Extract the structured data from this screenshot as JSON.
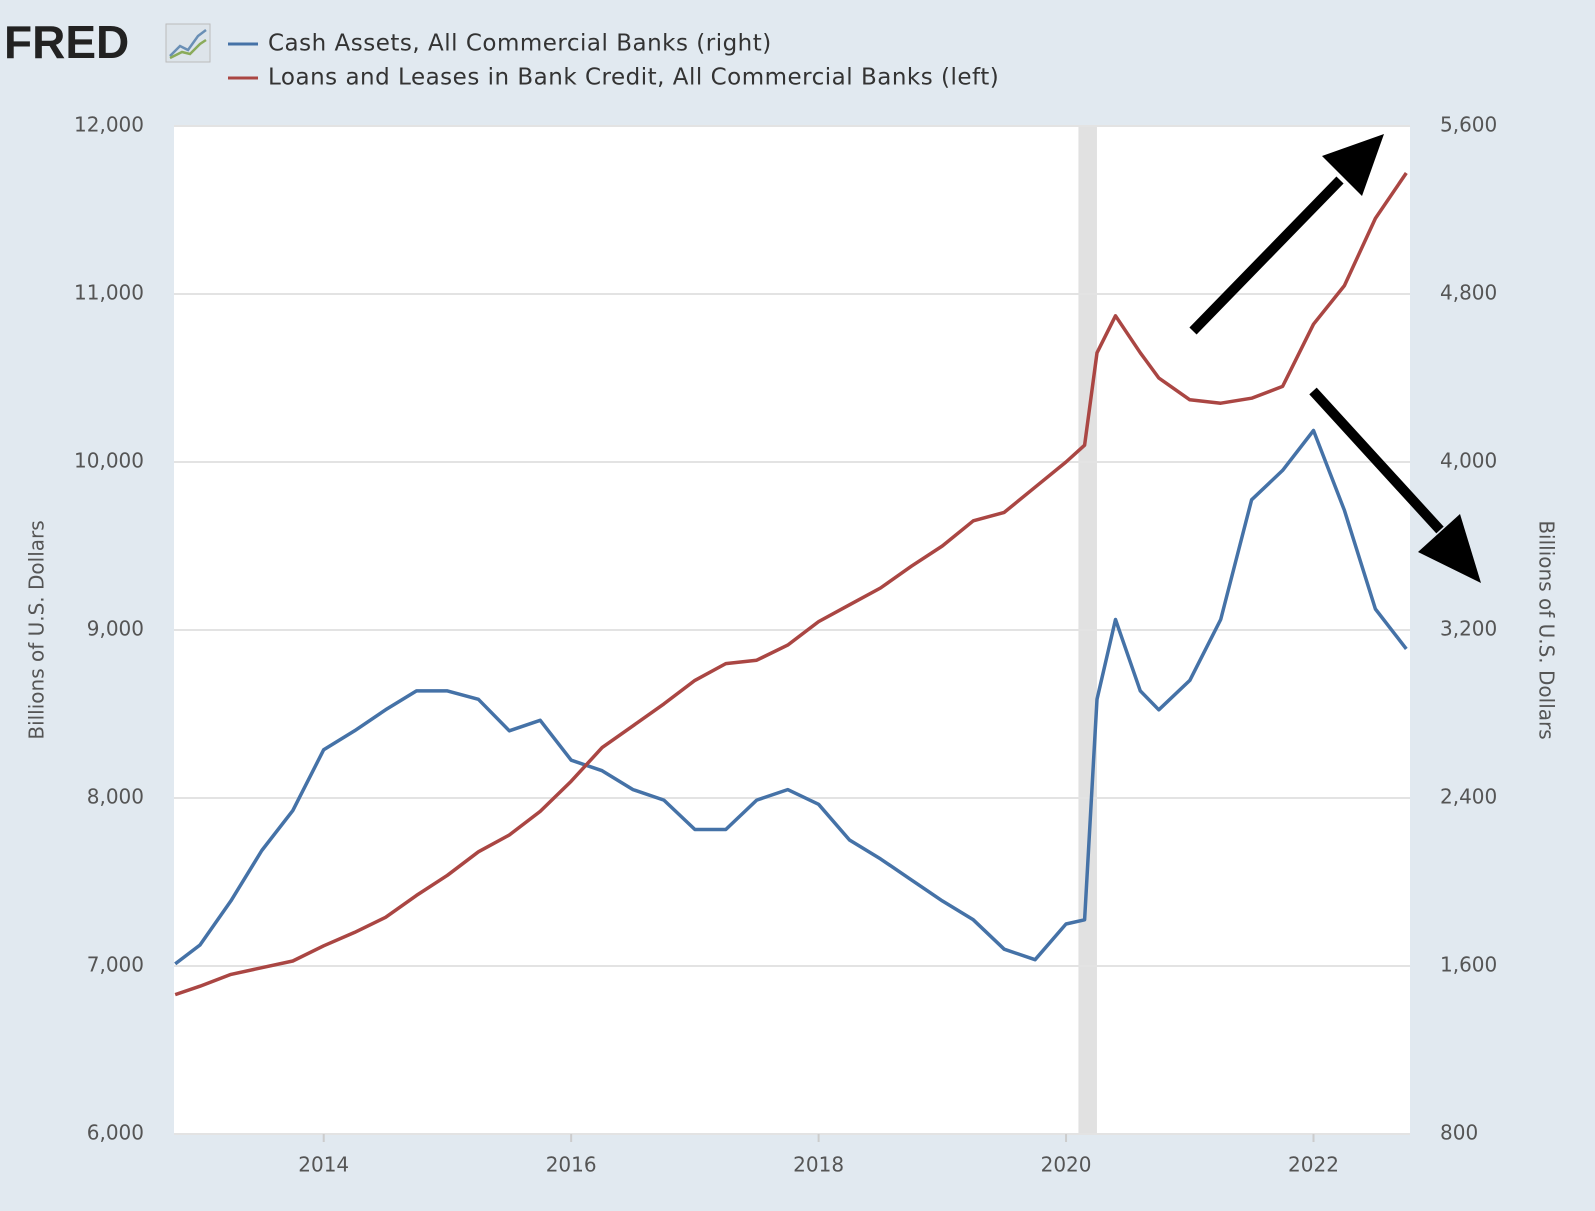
{
  "chart_data": {
    "type": "line",
    "logo": "FRED",
    "y_label": "Billions of U.S. Dollars",
    "y2_label": "Billions of U.S. Dollars",
    "xlim": [
      2012.79,
      2022.78
    ],
    "xticks": [
      2014,
      2016,
      2018,
      2020,
      2022
    ],
    "ylim": [
      6000,
      12000
    ],
    "yticks": [
      {
        "value": 6000,
        "label": "6,000"
      },
      {
        "value": 7000,
        "label": "7,000"
      },
      {
        "value": 8000,
        "label": "8,000"
      },
      {
        "value": 9000,
        "label": "9,000"
      },
      {
        "value": 10000,
        "label": "10,000"
      },
      {
        "value": 11000,
        "label": "11,000"
      },
      {
        "value": 12000,
        "label": "12,000"
      }
    ],
    "y2lim": [
      800,
      5600
    ],
    "y2ticks": [
      800,
      {
        "value": 1600,
        "label": "1,600"
      },
      {
        "value": 2400,
        "label": "2,400"
      },
      {
        "value": 3200,
        "label": "3,200"
      },
      {
        "value": 4000,
        "label": "4,000"
      },
      {
        "value": 4800,
        "label": "4,800"
      },
      {
        "value": 5600,
        "label": "5,600"
      }
    ],
    "grid": true,
    "shading": [
      {
        "x0": 2020.1,
        "x1": 2020.25
      }
    ],
    "series": [
      {
        "name": "Cash Assets, All Commercial Banks (right)",
        "color": "#4572a7",
        "axis": "y2",
        "x": [
          2012.8,
          2013.0,
          2013.25,
          2013.5,
          2013.75,
          2014.0,
          2014.25,
          2014.5,
          2014.75,
          2015.0,
          2015.25,
          2015.5,
          2015.75,
          2016.0,
          2016.25,
          2016.5,
          2016.75,
          2017.0,
          2017.25,
          2017.5,
          2017.75,
          2018.0,
          2018.25,
          2018.5,
          2018.75,
          2019.0,
          2019.25,
          2019.5,
          2019.75,
          2020.0,
          2020.15,
          2020.25,
          2020.4,
          2020.6,
          2020.75,
          2021.0,
          2021.25,
          2021.5,
          2021.75,
          2022.0,
          2022.25,
          2022.5,
          2022.75
        ],
        "values": [
          1610,
          1700,
          1910,
          2150,
          2340,
          2630,
          2720,
          2820,
          2910,
          2910,
          2870,
          2720,
          2770,
          2580,
          2530,
          2440,
          2390,
          2250,
          2250,
          2390,
          2440,
          2370,
          2200,
          2110,
          2010,
          1910,
          1820,
          1680,
          1630,
          1800,
          1820,
          2870,
          3250,
          2910,
          2820,
          2960,
          3250,
          3820,
          3960,
          4150,
          3770,
          3300,
          3110
        ]
      },
      {
        "name": "Loans and Leases in Bank Credit, All Commercial Banks (left)",
        "color": "#aa4643",
        "x": [
          2012.8,
          2013.0,
          2013.25,
          2013.5,
          2013.75,
          2014.0,
          2014.25,
          2014.5,
          2014.75,
          2015.0,
          2015.25,
          2015.5,
          2015.75,
          2016.0,
          2016.25,
          2016.5,
          2016.75,
          2017.0,
          2017.25,
          2017.5,
          2017.75,
          2018.0,
          2018.25,
          2018.5,
          2018.75,
          2019.0,
          2019.25,
          2019.5,
          2019.75,
          2020.0,
          2020.15,
          2020.25,
          2020.4,
          2020.6,
          2020.75,
          2021.0,
          2021.25,
          2021.5,
          2021.75,
          2022.0,
          2022.25,
          2022.5,
          2022.75
        ],
        "values": [
          6830,
          6880,
          6950,
          6990,
          7030,
          7120,
          7200,
          7290,
          7420,
          7540,
          7680,
          7780,
          7920,
          8100,
          8300,
          8430,
          8560,
          8700,
          8800,
          8820,
          8910,
          9050,
          9150,
          9250,
          9380,
          9500,
          9650,
          9700,
          9850,
          10000,
          10100,
          10650,
          10870,
          10650,
          10500,
          10370,
          10350,
          10380,
          10450,
          10820,
          11050,
          11450,
          11720
        ]
      }
    ]
  }
}
